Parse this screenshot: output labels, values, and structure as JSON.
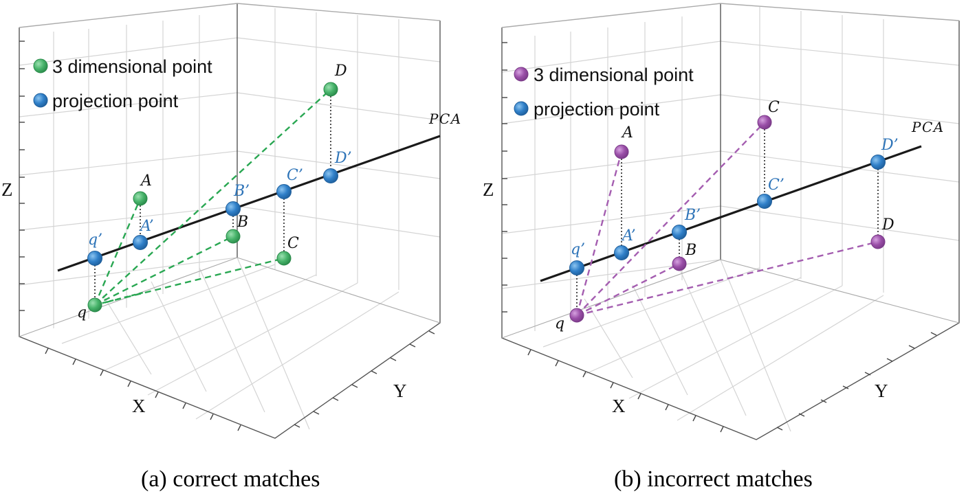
{
  "colors": {
    "green_point": "#47b36a",
    "green_stroke": "#2a8a4a",
    "purple_point": "#9a4fa8",
    "purple_stroke": "#7a3a88",
    "blue_point": "#2f7fc8",
    "blue_stroke": "#1f5f9c",
    "green_dash": "#29a752",
    "purple_dash": "#a45db0"
  },
  "panels": [
    {
      "id": "a",
      "caption": "(a) correct matches",
      "axis_x": "X",
      "axis_y": "Y",
      "axis_z": "Z",
      "pca_label": "PCA",
      "legend": [
        "3 dimensional point",
        "projection point"
      ],
      "point_labels": {
        "q": "q",
        "A": "A",
        "B": "B",
        "C": "C",
        "D": "D",
        "qp": "q’",
        "Ap": "A’",
        "Bp": "B’",
        "Cp": "C’",
        "Dp": "D’"
      }
    },
    {
      "id": "b",
      "caption": "(b) incorrect matches",
      "axis_x": "X",
      "axis_y": "Y",
      "axis_z": "Z",
      "pca_label": "PCA",
      "legend": [
        "3 dimensional point",
        "projection point"
      ],
      "point_labels": {
        "q": "q",
        "A": "A",
        "B": "B",
        "C": "C",
        "D": "D",
        "qp": "q’",
        "Ap": "A’",
        "Bp": "B’",
        "Cp": "C’",
        "Dp": "D’"
      }
    }
  ]
}
